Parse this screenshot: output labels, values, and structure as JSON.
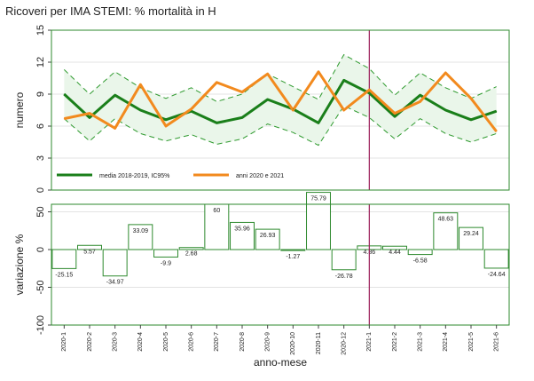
{
  "title": "Ricoveri per IMA STEMI: % mortalità in H",
  "colors": {
    "mean_line": "#1a7f1a",
    "band_fill": "#eaf6ea",
    "band_edge": "#2e9a2e",
    "observed": "#f28a1e",
    "reference_line": "#9c1f5a",
    "bar_edge": "#2e8a2e",
    "frame": "#2e8a2e",
    "grid": "#e3e3e3"
  },
  "chart_data": [
    {
      "type": "line",
      "ylabel": "numero",
      "ylim": [
        0,
        15
      ],
      "yticks": [
        "0",
        "3",
        "6",
        "9",
        "12",
        "15"
      ],
      "grid": true,
      "legend_placement": "bottom",
      "x": [
        "2020-1",
        "2020-2",
        "2020-3",
        "2020-4",
        "2020-5",
        "2020-6",
        "2020-7",
        "2020-8",
        "2020-9",
        "2020-10",
        "2020-11",
        "2020-12",
        "2021-1",
        "2021-2",
        "2021-3",
        "2021-4",
        "2021-5",
        "2021-6"
      ],
      "series": [
        {
          "name": "media 2018-2019, IC95%",
          "values": [
            9.0,
            6.8,
            8.9,
            7.5,
            6.6,
            7.4,
            6.3,
            6.8,
            8.5,
            7.6,
            6.3,
            10.3,
            9.1,
            6.9,
            8.9,
            7.5,
            6.6,
            7.4
          ]
        },
        {
          "name": "anni 2020 e 2021",
          "values": [
            6.7,
            7.2,
            5.8,
            9.9,
            6.0,
            7.6,
            10.1,
            9.2,
            10.9,
            7.5,
            11.1,
            7.5,
            9.4,
            7.2,
            8.3,
            11.0,
            8.6,
            5.5
          ]
        }
      ],
      "ci_upper": [
        11.3,
        9.0,
        11.1,
        9.6,
        8.6,
        9.6,
        8.3,
        9.0,
        10.9,
        9.7,
        8.5,
        12.7,
        11.4,
        8.9,
        11.0,
        9.6,
        8.6,
        9.7
      ],
      "ci_lower": [
        6.7,
        4.6,
        6.7,
        5.3,
        4.6,
        5.2,
        4.3,
        4.8,
        6.2,
        5.4,
        4.2,
        7.9,
        6.8,
        4.8,
        6.7,
        5.3,
        4.5,
        5.3
      ],
      "reference_x": "2021-1"
    },
    {
      "type": "bar",
      "ylabel": "variazione %",
      "xlabel": "anno-mese",
      "ylim": [
        -100,
        60
      ],
      "yticks": [
        "50",
        "0",
        "-50",
        "-100"
      ],
      "grid": true,
      "categories": [
        "2020-1",
        "2020-2",
        "2020-3",
        "2020-4",
        "2020-5",
        "2020-6",
        "2020-7",
        "2020-8",
        "2020-9",
        "2020-10",
        "2020-11",
        "2020-12",
        "2021-1",
        "2021-2",
        "2021-3",
        "2021-4",
        "2021-5",
        "2021-6"
      ],
      "values": [
        -25.15,
        5.57,
        -34.97,
        33.09,
        -9.9,
        2.68,
        60,
        35.96,
        26.93,
        -1.27,
        75.79,
        -26.78,
        4.86,
        4.44,
        -6.58,
        48.63,
        29.24,
        -24.64
      ],
      "labels": [
        "-25.15",
        "5.57",
        "-34.97",
        "33.09",
        "-9.9",
        "2.68",
        "60",
        "35.96",
        "26.93",
        "-1.27",
        "75.79",
        "-26.78",
        "4.86",
        "4.44",
        "-6.58",
        "48.63",
        "29.24",
        "-24.64"
      ],
      "reference_x": "2021-1"
    }
  ]
}
